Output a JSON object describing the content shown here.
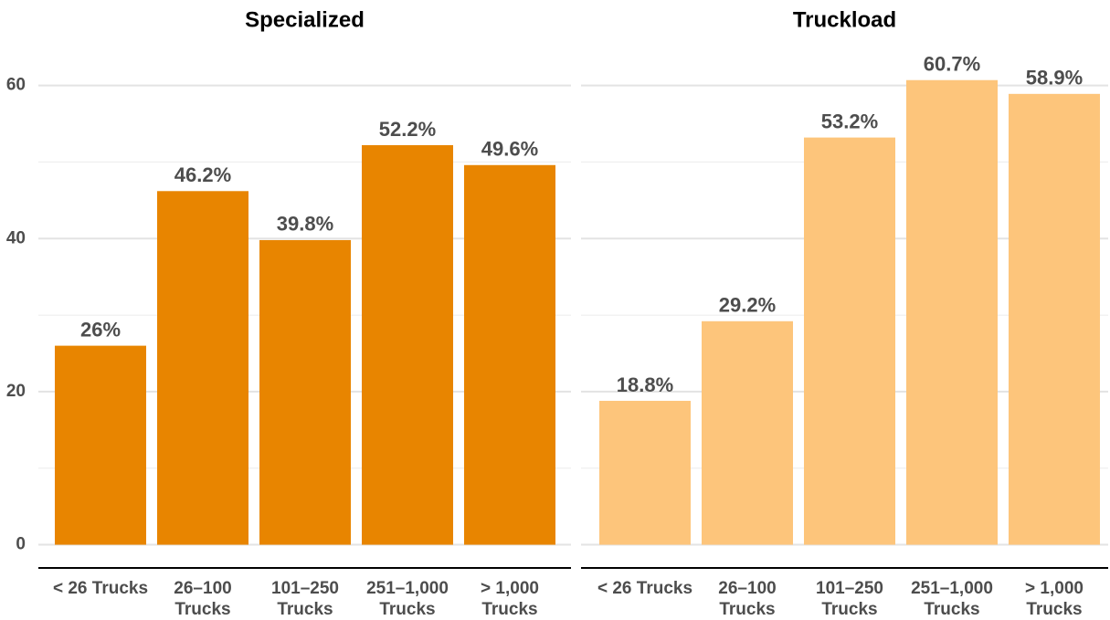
{
  "chart_data": [
    {
      "type": "bar",
      "title": "Specialized",
      "categories": [
        "< 26 Trucks",
        "26–100\nTrucks",
        "101–250\nTrucks",
        "251–1,000\nTrucks",
        "> 1,000\nTrucks"
      ],
      "values": [
        26,
        46.2,
        39.8,
        52.2,
        49.6
      ],
      "value_labels": [
        "26%",
        "46.2%",
        "39.8%",
        "52.2%",
        "49.6%"
      ],
      "color": "#e88500",
      "ylim": [
        -3.035,
        63.735
      ],
      "yticks": [
        0,
        20,
        40,
        60
      ],
      "minor_yticks": [
        10,
        30,
        50
      ],
      "grid": true
    },
    {
      "type": "bar",
      "title": "Truckload",
      "categories": [
        "< 26 Trucks",
        "26–100\nTrucks",
        "101–250\nTrucks",
        "251–1,000\nTrucks",
        "> 1,000\nTrucks"
      ],
      "values": [
        18.8,
        29.2,
        53.2,
        60.7,
        58.9
      ],
      "value_labels": [
        "18.8%",
        "29.2%",
        "53.2%",
        "60.7%",
        "58.9%"
      ],
      "color": "#fdc57b",
      "ylim": [
        -3.035,
        63.735
      ],
      "grid": true
    }
  ]
}
